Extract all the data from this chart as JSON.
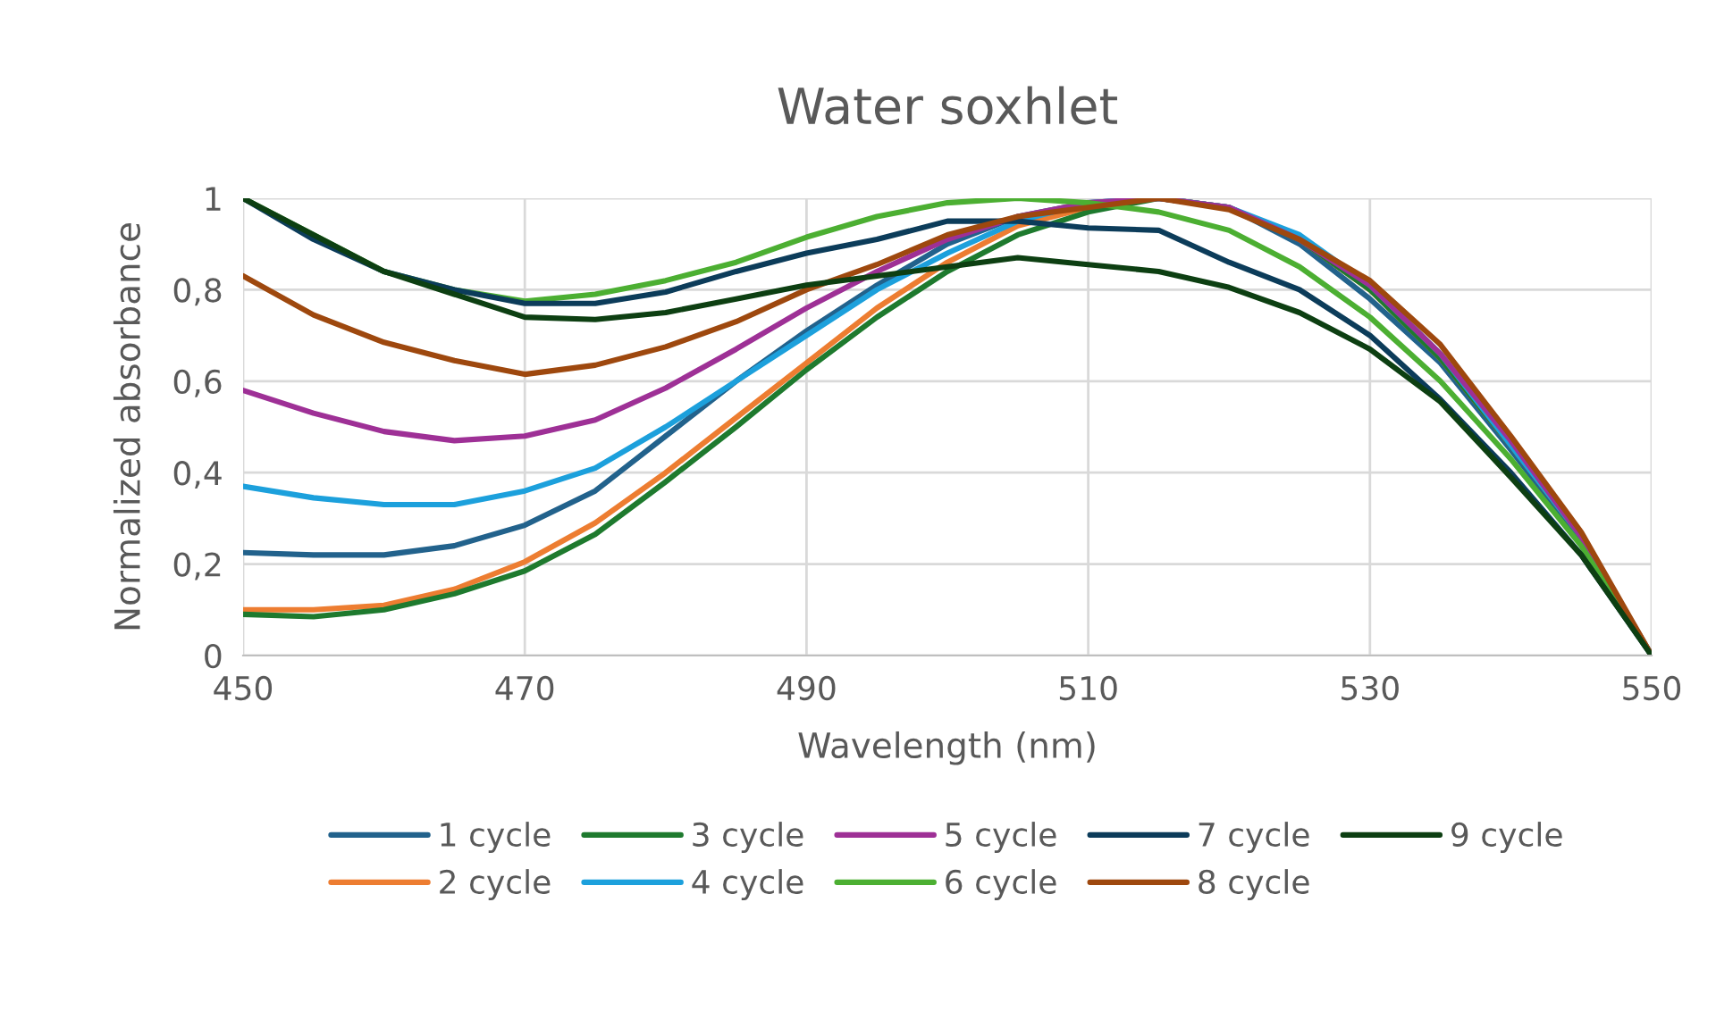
{
  "chart_data": {
    "type": "line",
    "title": "Water soxhlet",
    "xlabel": "Wavelength (nm)",
    "ylabel": "Normalized absorbance",
    "x": [
      450,
      455,
      460,
      465,
      470,
      475,
      480,
      485,
      490,
      495,
      500,
      505,
      510,
      515,
      520,
      525,
      530,
      535,
      540,
      545,
      550
    ],
    "xlim": [
      450,
      550
    ],
    "xticks": [
      450,
      470,
      490,
      510,
      530,
      550
    ],
    "ylim": [
      0,
      1
    ],
    "yticks": [
      0,
      {
        "value": 0.2,
        "label": "0,2"
      },
      {
        "value": 0.4,
        "label": "0,4"
      },
      {
        "value": 0.6,
        "label": "0,6"
      },
      {
        "value": 0.8,
        "label": "0,8"
      },
      1
    ],
    "grid": true,
    "legend": "bottom",
    "marker": "none",
    "line_style": "solid",
    "series": [
      {
        "name": "1 cycle",
        "color": "#22628c",
        "values": [
          0.225,
          0.22,
          0.22,
          0.24,
          0.285,
          0.36,
          0.48,
          0.6,
          0.71,
          0.81,
          0.9,
          0.96,
          0.99,
          1.0,
          0.98,
          0.9,
          0.78,
          0.64,
          0.45,
          0.25,
          0
        ]
      },
      {
        "name": "2 cycle",
        "color": "#ed7d31",
        "values": [
          0.1,
          0.1,
          0.11,
          0.145,
          0.205,
          0.29,
          0.4,
          0.52,
          0.64,
          0.76,
          0.86,
          0.94,
          0.98,
          1.0,
          0.98,
          0.91,
          0.8,
          0.65,
          0.46,
          0.26,
          0
        ]
      },
      {
        "name": "3 cycle",
        "color": "#1e7a2e",
        "values": [
          0.09,
          0.085,
          0.1,
          0.135,
          0.185,
          0.265,
          0.38,
          0.5,
          0.625,
          0.74,
          0.84,
          0.92,
          0.97,
          1.0,
          0.98,
          0.91,
          0.8,
          0.65,
          0.46,
          0.26,
          0
        ]
      },
      {
        "name": "4 cycle",
        "color": "#1ca0dc",
        "values": [
          0.37,
          0.345,
          0.33,
          0.33,
          0.36,
          0.41,
          0.5,
          0.6,
          0.7,
          0.8,
          0.88,
          0.95,
          0.99,
          1.0,
          0.98,
          0.92,
          0.81,
          0.66,
          0.46,
          0.26,
          0
        ]
      },
      {
        "name": "5 cycle",
        "color": "#9e3096",
        "values": [
          0.58,
          0.53,
          0.49,
          0.47,
          0.48,
          0.515,
          0.585,
          0.67,
          0.76,
          0.84,
          0.91,
          0.96,
          0.99,
          1.0,
          0.98,
          0.91,
          0.81,
          0.66,
          0.47,
          0.26,
          0
        ]
      },
      {
        "name": "6 cycle",
        "color": "#4caf32",
        "values": [
          1.0,
          0.92,
          0.84,
          0.8,
          0.775,
          0.79,
          0.82,
          0.86,
          0.915,
          0.96,
          0.99,
          1.0,
          0.99,
          0.97,
          0.93,
          0.85,
          0.74,
          0.6,
          0.43,
          0.24,
          0
        ]
      },
      {
        "name": "7 cycle",
        "color": "#0c3c5a",
        "values": [
          1.0,
          0.91,
          0.84,
          0.8,
          0.77,
          0.77,
          0.795,
          0.84,
          0.88,
          0.91,
          0.95,
          0.95,
          0.935,
          0.93,
          0.86,
          0.8,
          0.7,
          0.56,
          0.4,
          0.22,
          0
        ]
      },
      {
        "name": "8 cycle",
        "color": "#9e480e",
        "values": [
          0.83,
          0.745,
          0.685,
          0.645,
          0.615,
          0.635,
          0.675,
          0.73,
          0.8,
          0.855,
          0.92,
          0.96,
          0.98,
          1.0,
          0.975,
          0.91,
          0.82,
          0.68,
          0.48,
          0.27,
          0
        ]
      },
      {
        "name": "9 cycle",
        "color": "#0d3f12",
        "values": [
          1.0,
          0.92,
          0.84,
          0.79,
          0.74,
          0.735,
          0.75,
          0.78,
          0.81,
          0.83,
          0.85,
          0.87,
          0.855,
          0.84,
          0.805,
          0.75,
          0.67,
          0.555,
          0.39,
          0.22,
          0
        ]
      }
    ]
  }
}
